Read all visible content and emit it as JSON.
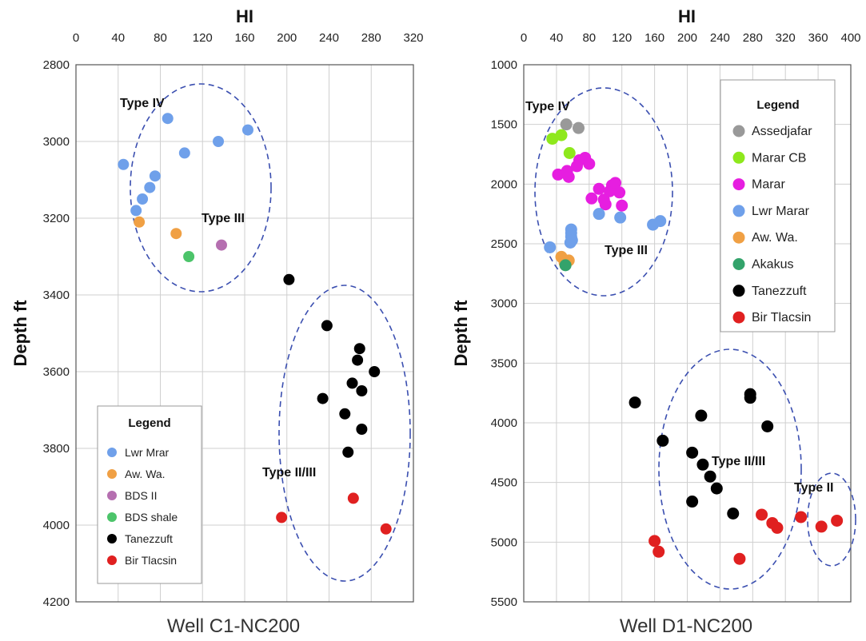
{
  "chart_data": [
    {
      "type": "scatter",
      "title": "Well C1-NC200",
      "xlabel": "HI",
      "ylabel": "Depth ft",
      "xlim": [
        0,
        320
      ],
      "xticks": [
        "0",
        "40",
        "80",
        "120",
        "160",
        "200",
        "240",
        "280",
        "320"
      ],
      "ylim": [
        2800,
        4200
      ],
      "yticks": [
        "2800",
        "3000",
        "3200",
        "3400",
        "3600",
        "3800",
        "4000",
        "4200"
      ],
      "y_inverted": true,
      "grid": true,
      "legend_placement": "bottom-left",
      "legend_title": "Legend",
      "series": [
        {
          "name": "Lwr Mrar",
          "color": "#6fa0ea",
          "points": [
            [
              87,
              2940
            ],
            [
              163,
              2970
            ],
            [
              135,
              3000
            ],
            [
              103,
              3030
            ],
            [
              45,
              3060
            ],
            [
              75,
              3090
            ],
            [
              70,
              3120
            ],
            [
              63,
              3150
            ],
            [
              57,
              3180
            ]
          ]
        },
        {
          "name": "Aw. Wa.",
          "color": "#f0a044",
          "points": [
            [
              60,
              3210
            ],
            [
              95,
              3240
            ]
          ]
        },
        {
          "name": "BDS II",
          "color": "#b56fb0",
          "points": [
            [
              138,
              3270
            ]
          ]
        },
        {
          "name": "BDS shale",
          "color": "#4cc46a",
          "points": [
            [
              107,
              3300
            ]
          ]
        },
        {
          "name": "Tanezzuft",
          "color": "#000000",
          "points": [
            [
              202,
              3360
            ],
            [
              238,
              3480
            ],
            [
              269,
              3540
            ],
            [
              267,
              3570
            ],
            [
              283,
              3600
            ],
            [
              262,
              3630
            ],
            [
              271,
              3650
            ],
            [
              234,
              3670
            ],
            [
              255,
              3710
            ],
            [
              271,
              3750
            ],
            [
              258,
              3810
            ]
          ]
        },
        {
          "name": "Bir Tlacsin",
          "color": "#e02020",
          "points": [
            [
              263,
              3930
            ],
            [
              195,
              3980
            ],
            [
              294,
              4010
            ]
          ]
        }
      ],
      "annotations": [
        "Type IV",
        "Type III",
        "Type II/III"
      ]
    },
    {
      "type": "scatter",
      "title": "Well D1-NC200",
      "xlabel": "HI",
      "ylabel": "Depth ft",
      "xlim": [
        0,
        400
      ],
      "xticks": [
        "0",
        "40",
        "80",
        "120",
        "160",
        "200",
        "240",
        "280",
        "320",
        "360",
        "400"
      ],
      "ylim": [
        1000,
        5500
      ],
      "yticks": [
        "1000",
        "1500",
        "2000",
        "2500",
        "3000",
        "3500",
        "4000",
        "4500",
        "5000",
        "5500"
      ],
      "y_inverted": true,
      "grid": true,
      "legend_placement": "top-right",
      "legend_title": "Legend",
      "series": [
        {
          "name": "Assedjafar",
          "color": "#999999",
          "points": [
            [
              52,
              1500
            ],
            [
              67,
              1530
            ]
          ]
        },
        {
          "name": "Marar CB",
          "color": "#8ee81c",
          "points": [
            [
              35,
              1620
            ],
            [
              46,
              1590
            ],
            [
              56,
              1740
            ]
          ]
        },
        {
          "name": "Marar",
          "color": "#e61ee0",
          "points": [
            [
              42,
              1920
            ],
            [
              53,
              1890
            ],
            [
              55,
              1940
            ],
            [
              65,
              1850
            ],
            [
              68,
              1800
            ],
            [
              75,
              1780
            ],
            [
              80,
              1830
            ],
            [
              92,
              2040
            ],
            [
              98,
              2130
            ],
            [
              100,
              2170
            ],
            [
              105,
              2060
            ],
            [
              108,
              2010
            ],
            [
              112,
              1990
            ],
            [
              117,
              2070
            ],
            [
              120,
              2180
            ],
            [
              83,
              2120
            ]
          ]
        },
        {
          "name": "Lwr Marar",
          "color": "#6fa0ea",
          "points": [
            [
              32,
              2530
            ],
            [
              57,
              2490
            ],
            [
              58,
              2380
            ],
            [
              58,
              2410
            ],
            [
              58,
              2440
            ],
            [
              59,
              2470
            ],
            [
              92,
              2250
            ],
            [
              118,
              2280
            ],
            [
              158,
              2340
            ],
            [
              167,
              2310
            ]
          ]
        },
        {
          "name": "Aw. Wa.",
          "color": "#f0a044",
          "points": [
            [
              46,
              2610
            ],
            [
              55,
              2640
            ],
            [
              50,
              2660
            ]
          ]
        },
        {
          "name": "Akakus",
          "color": "#33a36b",
          "points": [
            [
              51,
              2680
            ]
          ]
        },
        {
          "name": "Tanezzuft",
          "color": "#000000",
          "points": [
            [
              136,
              3830
            ],
            [
              170,
              4150
            ],
            [
              217,
              3940
            ],
            [
              206,
              4250
            ],
            [
              219,
              4350
            ],
            [
              228,
              4450
            ],
            [
              236,
              4550
            ],
            [
              206,
              4660
            ],
            [
              256,
              4760
            ],
            [
              277,
              3760
            ],
            [
              277,
              3790
            ],
            [
              298,
              4030
            ]
          ]
        },
        {
          "name": "Bir Tlacsin",
          "color": "#e02020",
          "points": [
            [
              160,
              4990
            ],
            [
              165,
              5080
            ],
            [
              264,
              5140
            ],
            [
              291,
              4770
            ],
            [
              304,
              4840
            ],
            [
              310,
              4880
            ],
            [
              339,
              4790
            ],
            [
              364,
              4870
            ],
            [
              383,
              4820
            ]
          ]
        }
      ],
      "annotations": [
        "Type IV",
        "Type III",
        "Type II/III",
        "Type II"
      ]
    }
  ]
}
